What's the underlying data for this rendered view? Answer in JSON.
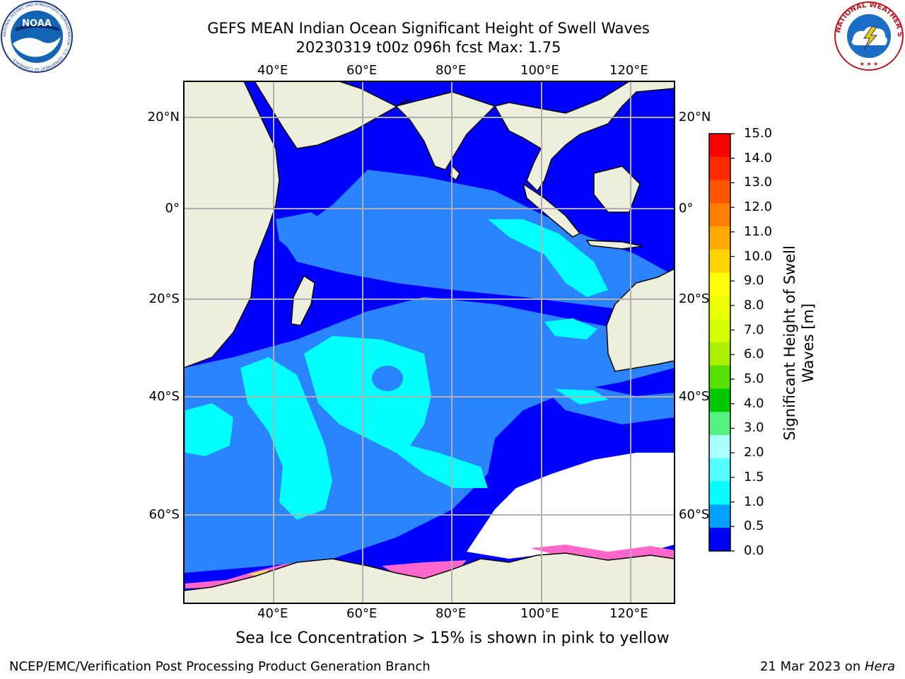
{
  "header": {
    "title_line1": "GEFS MEAN Indian Ocean Significant Height of Swell Waves",
    "title_line2": "20230319 t00z 096h fcst   Max: 1.75"
  },
  "logos": {
    "noaa": {
      "text": "NOAA",
      "ring_text": "NATIONAL OCEANIC AND ATMOSPHERIC ADMINISTRATION · U.S. DEPARTMENT OF COMMERCE"
    },
    "nws": {
      "ring_text": "NATIONAL WEATHER SERVICE"
    }
  },
  "map": {
    "lon_ticks": [
      "40°E",
      "60°E",
      "80°E",
      "100°E",
      "120°E"
    ],
    "lat_ticks_left": [
      "20°N",
      "0°",
      "20°S",
      "40°S",
      "60°S"
    ],
    "lat_ticks_right": [
      "20°N",
      "0°",
      "20°S",
      "40°S",
      "60°S"
    ],
    "land_color": "#eeeedc",
    "note": "Sea Ice Concentration > 15% is shown in pink to yellow"
  },
  "colorbar": {
    "title_line1": "Significant Height of Swell",
    "title_line2": "Waves [m]",
    "labels": [
      "15.0",
      "14.0",
      "13.0",
      "12.0",
      "11.0",
      "10.0",
      "9.0",
      "8.0",
      "7.0",
      "6.0",
      "5.0",
      "4.0",
      "3.0",
      "2.0",
      "1.5",
      "1.0",
      "0.5",
      "0.0"
    ],
    "colors_top_to_bottom": [
      "#ff0000",
      "#ff2a00",
      "#ff5500",
      "#ff7f00",
      "#ffaa00",
      "#ffd400",
      "#ffff00",
      "#eaff00",
      "#d4ff00",
      "#aaf000",
      "#55e000",
      "#00c800",
      "#55f07f",
      "#aaffff",
      "#55ffff",
      "#00ffff",
      "#00a0ff",
      "#0000ff"
    ]
  },
  "footer": {
    "left": "NCEP/EMC/Verification Post Processing Product Generation Branch",
    "right_date": "21 Mar 2023 on ",
    "right_host": "Hera"
  }
}
